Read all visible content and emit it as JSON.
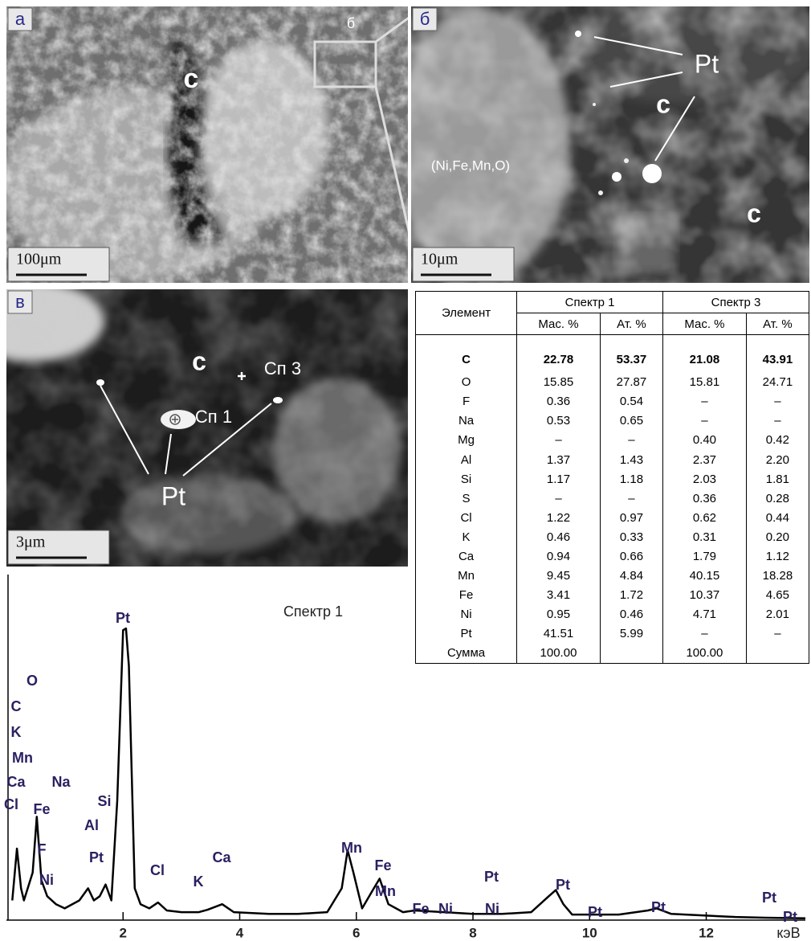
{
  "panels": [
    {
      "label": "а",
      "scale": "100μm",
      "annotations": [
        "c",
        "б"
      ]
    },
    {
      "label": "б",
      "scale": "10μm",
      "annotations": [
        "Pt",
        "c",
        "(Ni,Fe,Mn,O)",
        "c"
      ]
    },
    {
      "label": "в",
      "scale": "3μm",
      "annotations": [
        "c",
        "Сп 3",
        "Сп 1",
        "Pt"
      ]
    }
  ],
  "table": {
    "header": [
      "Элемент",
      "Спектр 1",
      "Спектр 3"
    ],
    "subheader": [
      "Мас. %",
      "Ат. %",
      "Мас. %",
      "Ат. %"
    ],
    "rows": [
      [
        "C",
        "22.78",
        "53.37",
        "21.08",
        "43.91"
      ],
      [
        "O",
        "15.85",
        "27.87",
        "15.81",
        "24.71"
      ],
      [
        "F",
        "0.36",
        "0.54",
        "–",
        "–"
      ],
      [
        "Na",
        "0.53",
        "0.65",
        "–",
        "–"
      ],
      [
        "Mg",
        "–",
        "–",
        "0.40",
        "0.42"
      ],
      [
        "Al",
        "1.37",
        "1.43",
        "2.37",
        "2.20"
      ],
      [
        "Si",
        "1.17",
        "1.18",
        "2.03",
        "1.81"
      ],
      [
        "S",
        "–",
        "–",
        "0.36",
        "0.28"
      ],
      [
        "Cl",
        "1.22",
        "0.97",
        "0.62",
        "0.44"
      ],
      [
        "K",
        "0.46",
        "0.33",
        "0.31",
        "0.20"
      ],
      [
        "Ca",
        "0.94",
        "0.66",
        "1.79",
        "1.12"
      ],
      [
        "Mn",
        "9.45",
        "4.84",
        "40.15",
        "18.28"
      ],
      [
        "Fe",
        "3.41",
        "1.72",
        "10.37",
        "4.65"
      ],
      [
        "Ni",
        "0.95",
        "0.46",
        "4.71",
        "2.01"
      ],
      [
        "Pt",
        "41.51",
        "5.99",
        "–",
        "–"
      ],
      [
        "Сумма",
        "100.00",
        "",
        "100.00",
        ""
      ]
    ]
  },
  "chart_data": {
    "type": "line",
    "title": "Спектр 1",
    "x_label": "кэВ",
    "xlim": [
      0,
      13.7
    ],
    "ylim": [
      0,
      100
    ],
    "xticks": [
      2,
      4,
      6,
      8,
      10,
      12
    ],
    "x": [
      0.1,
      0.18,
      0.25,
      0.3,
      0.45,
      0.52,
      0.6,
      0.7,
      0.85,
      1.0,
      1.25,
      1.4,
      1.5,
      1.6,
      1.7,
      1.8,
      1.9,
      2.0,
      2.05,
      2.1,
      2.2,
      2.3,
      2.45,
      2.6,
      2.75,
      3.0,
      3.3,
      3.45,
      3.7,
      3.9,
      4.5,
      5.0,
      5.5,
      5.75,
      5.85,
      5.95,
      6.1,
      6.3,
      6.4,
      6.55,
      6.8,
      7.0,
      7.5,
      8.0,
      8.5,
      9.0,
      9.3,
      9.42,
      9.55,
      9.7,
      10.5,
      11.0,
      11.15,
      11.4,
      12.5,
      13.0,
      13.7
    ],
    "series": [
      {
        "color": "#000000",
        "values": [
          5.7,
          20.7,
          9.2,
          5.7,
          13.8,
          29.9,
          11.5,
          6.9,
          4.6,
          3.4,
          5.7,
          9.2,
          5.7,
          6.9,
          10.3,
          5.7,
          34.5,
          83.9,
          84.4,
          73.6,
          9.2,
          4.6,
          3.4,
          5.1,
          2.8,
          2.3,
          2.3,
          3.0,
          4.6,
          2.3,
          1.8,
          1.8,
          2.3,
          9.2,
          20.2,
          13.8,
          3.4,
          9.2,
          12.0,
          4.6,
          2.3,
          2.8,
          2.3,
          1.8,
          1.8,
          2.3,
          6.9,
          8.7,
          4.6,
          1.6,
          1.6,
          2.8,
          3.4,
          1.8,
          0.9,
          0.7,
          0.5
        ]
      }
    ],
    "peak_labels": [
      "O",
      "C",
      "K",
      "Mn",
      "Ca",
      "Na",
      "Cl",
      "Fe",
      "Si",
      "Al",
      "F",
      "Pt",
      "Ni",
      "Pt",
      "Cl",
      "K",
      "Ca",
      "Mn",
      "Fe",
      "Mn",
      "Fe",
      "Ni",
      "Pt",
      "Ni",
      "Pt",
      "Pt",
      "Pt",
      "Pt",
      "Pt"
    ]
  }
}
